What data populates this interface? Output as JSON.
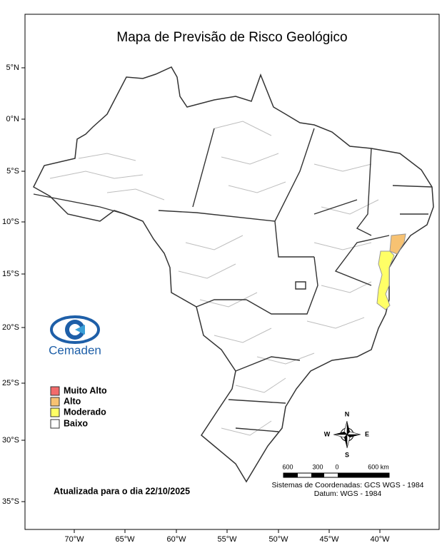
{
  "title": "Mapa de Previsão de Risco Geológico",
  "lat_labels": [
    "5°N",
    "0°N",
    "5°S",
    "10°S",
    "15°S",
    "20°S",
    "25°S",
    "30°S",
    "35°S"
  ],
  "lon_labels": [
    "70°W",
    "65°W",
    "60°W",
    "55°W",
    "50°W",
    "45°W",
    "40°W"
  ],
  "logo": {
    "text": "Cemaden"
  },
  "legend": [
    {
      "label": "Muito Alto",
      "color": "#f26b6b"
    },
    {
      "label": "Alto",
      "color": "#f7c272"
    },
    {
      "label": "Moderado",
      "color": "#ffff66"
    },
    {
      "label": "Baixo",
      "color": "#ffffff"
    }
  ],
  "updated": "Atualizada para o dia 22/10/2025",
  "compass": {
    "north": "N",
    "south": "S",
    "east": "E",
    "west": "W"
  },
  "scale_labels": [
    "600",
    "300",
    "0",
    "600 km"
  ],
  "crs": [
    "Sistemas de Coordenadas: GCS WGS - 1984",
    "Datum: WGS - 1984"
  ]
}
